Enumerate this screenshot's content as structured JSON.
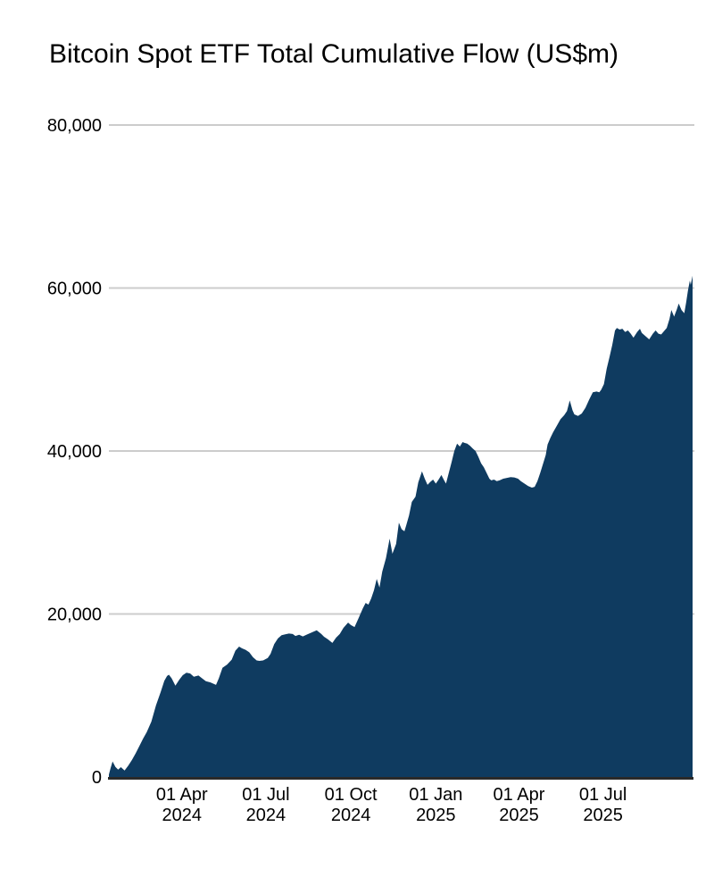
{
  "header": {
    "title": "Bitcoin Spot ETF Total Cumulative Flow (US$m)"
  },
  "chart_data": {
    "type": "area",
    "title": "Bitcoin Spot ETF Total Cumulative Flow (US$m)",
    "xlabel": "",
    "ylabel": "",
    "legend": "none",
    "grid": true,
    "ylim": [
      0,
      80000
    ],
    "x_domain": [
      "2024-01-13",
      "2025-10-06"
    ],
    "y_ticks": [
      {
        "value": 0,
        "label": "0"
      },
      {
        "value": 20000,
        "label": "20,000"
      },
      {
        "value": 40000,
        "label": "40,000"
      },
      {
        "value": 60000,
        "label": "60,000"
      },
      {
        "value": 80000,
        "label": "80,000"
      }
    ],
    "x_ticks": [
      {
        "date": "2024-04-01",
        "line1": "01 Apr",
        "line2": "2024"
      },
      {
        "date": "2024-07-01",
        "line1": "01 Jul",
        "line2": "2024"
      },
      {
        "date": "2024-10-01",
        "line1": "01 Oct",
        "line2": "2024"
      },
      {
        "date": "2025-01-01",
        "line1": "01 Jan",
        "line2": "2025"
      },
      {
        "date": "2025-04-01",
        "line1": "01 Apr",
        "line2": "2025"
      },
      {
        "date": "2025-07-01",
        "line1": "01 Jul",
        "line2": "2025"
      }
    ],
    "colors": {
      "area_fill": "#0f3b60",
      "gridline": "#cccccc",
      "zero_line": "#2a2a2a",
      "text": "#000000",
      "background": "#ffffff"
    },
    "series": [
      {
        "name": "Total Cumulative Flow (US$m)",
        "points": [
          [
            "2024-01-13",
            300
          ],
          [
            "2024-01-15",
            1150
          ],
          [
            "2024-01-17",
            1900
          ],
          [
            "2024-01-20",
            1250
          ],
          [
            "2024-01-23",
            900
          ],
          [
            "2024-01-26",
            1200
          ],
          [
            "2024-01-30",
            800
          ],
          [
            "2024-02-03",
            1400
          ],
          [
            "2024-02-07",
            2100
          ],
          [
            "2024-02-11",
            2900
          ],
          [
            "2024-02-15",
            3800
          ],
          [
            "2024-02-19",
            4700
          ],
          [
            "2024-02-23",
            5500
          ],
          [
            "2024-02-28",
            6800
          ],
          [
            "2024-03-04",
            8800
          ],
          [
            "2024-03-09",
            10400
          ],
          [
            "2024-03-13",
            11800
          ],
          [
            "2024-03-16",
            12400
          ],
          [
            "2024-03-18",
            12550
          ],
          [
            "2024-03-21",
            12100
          ],
          [
            "2024-03-25",
            11200
          ],
          [
            "2024-03-29",
            11900
          ],
          [
            "2024-04-02",
            12500
          ],
          [
            "2024-04-06",
            12800
          ],
          [
            "2024-04-10",
            12700
          ],
          [
            "2024-04-14",
            12300
          ],
          [
            "2024-04-19",
            12450
          ],
          [
            "2024-04-23",
            12100
          ],
          [
            "2024-04-27",
            11750
          ],
          [
            "2024-05-02",
            11600
          ],
          [
            "2024-05-08",
            11300
          ],
          [
            "2024-05-11",
            12100
          ],
          [
            "2024-05-15",
            13400
          ],
          [
            "2024-05-20",
            13800
          ],
          [
            "2024-05-25",
            14400
          ],
          [
            "2024-05-29",
            15500
          ],
          [
            "2024-06-02",
            16000
          ],
          [
            "2024-06-05",
            15800
          ],
          [
            "2024-06-09",
            15600
          ],
          [
            "2024-06-13",
            15300
          ],
          [
            "2024-06-17",
            14700
          ],
          [
            "2024-06-21",
            14300
          ],
          [
            "2024-06-24",
            14250
          ],
          [
            "2024-06-28",
            14300
          ],
          [
            "2024-07-03",
            14600
          ],
          [
            "2024-07-06",
            15100
          ],
          [
            "2024-07-10",
            16300
          ],
          [
            "2024-07-14",
            17000
          ],
          [
            "2024-07-18",
            17400
          ],
          [
            "2024-07-22",
            17500
          ],
          [
            "2024-07-26",
            17600
          ],
          [
            "2024-07-30",
            17550
          ],
          [
            "2024-08-02",
            17300
          ],
          [
            "2024-08-06",
            17450
          ],
          [
            "2024-08-10",
            17250
          ],
          [
            "2024-08-15",
            17500
          ],
          [
            "2024-08-20",
            17750
          ],
          [
            "2024-08-25",
            18000
          ],
          [
            "2024-08-30",
            17550
          ],
          [
            "2024-09-02",
            17200
          ],
          [
            "2024-09-06",
            16900
          ],
          [
            "2024-09-11",
            16450
          ],
          [
            "2024-09-15",
            17100
          ],
          [
            "2024-09-19",
            17550
          ],
          [
            "2024-09-23",
            18300
          ],
          [
            "2024-09-28",
            18950
          ],
          [
            "2024-10-01",
            18650
          ],
          [
            "2024-10-05",
            18400
          ],
          [
            "2024-10-09",
            19400
          ],
          [
            "2024-10-14",
            20700
          ],
          [
            "2024-10-17",
            21350
          ],
          [
            "2024-10-20",
            21150
          ],
          [
            "2024-10-23",
            21900
          ],
          [
            "2024-10-26",
            22900
          ],
          [
            "2024-10-29",
            24300
          ],
          [
            "2024-11-01",
            23250
          ],
          [
            "2024-11-04",
            25200
          ],
          [
            "2024-11-08",
            26850
          ],
          [
            "2024-11-12",
            29250
          ],
          [
            "2024-11-15",
            27400
          ],
          [
            "2024-11-19",
            28600
          ],
          [
            "2024-11-22",
            31200
          ],
          [
            "2024-11-25",
            30400
          ],
          [
            "2024-11-28",
            30150
          ],
          [
            "2024-11-30",
            30900
          ],
          [
            "2024-12-03",
            32100
          ],
          [
            "2024-12-06",
            33750
          ],
          [
            "2024-12-10",
            34400
          ],
          [
            "2024-12-13",
            36150
          ],
          [
            "2024-12-17",
            37500
          ],
          [
            "2024-12-20",
            36600
          ],
          [
            "2024-12-23",
            35850
          ],
          [
            "2024-12-26",
            36200
          ],
          [
            "2024-12-29",
            36500
          ],
          [
            "2025-01-01",
            36000
          ],
          [
            "2025-01-04",
            36500
          ],
          [
            "2025-01-07",
            37050
          ],
          [
            "2025-01-10",
            36400
          ],
          [
            "2025-01-12",
            36000
          ],
          [
            "2025-01-15",
            37300
          ],
          [
            "2025-01-18",
            38600
          ],
          [
            "2025-01-21",
            40000
          ],
          [
            "2025-01-24",
            40900
          ],
          [
            "2025-01-27",
            40550
          ],
          [
            "2025-01-30",
            41100
          ],
          [
            "2025-02-01",
            41000
          ],
          [
            "2025-02-04",
            40900
          ],
          [
            "2025-02-07",
            40650
          ],
          [
            "2025-02-10",
            40300
          ],
          [
            "2025-02-13",
            40000
          ],
          [
            "2025-02-16",
            39300
          ],
          [
            "2025-02-19",
            38500
          ],
          [
            "2025-02-22",
            38000
          ],
          [
            "2025-02-25",
            37300
          ],
          [
            "2025-02-28",
            36600
          ],
          [
            "2025-03-02",
            36400
          ],
          [
            "2025-03-05",
            36500
          ],
          [
            "2025-03-08",
            36300
          ],
          [
            "2025-03-11",
            36400
          ],
          [
            "2025-03-15",
            36600
          ],
          [
            "2025-03-19",
            36700
          ],
          [
            "2025-03-23",
            36800
          ],
          [
            "2025-03-27",
            36750
          ],
          [
            "2025-03-31",
            36600
          ],
          [
            "2025-04-03",
            36300
          ],
          [
            "2025-04-07",
            36000
          ],
          [
            "2025-04-11",
            35700
          ],
          [
            "2025-04-15",
            35500
          ],
          [
            "2025-04-18",
            35600
          ],
          [
            "2025-04-21",
            36300
          ],
          [
            "2025-04-24",
            37300
          ],
          [
            "2025-04-27",
            38400
          ],
          [
            "2025-04-30",
            39500
          ],
          [
            "2025-05-02",
            40800
          ],
          [
            "2025-05-05",
            41600
          ],
          [
            "2025-05-08",
            42300
          ],
          [
            "2025-05-12",
            43100
          ],
          [
            "2025-05-16",
            43900
          ],
          [
            "2025-05-20",
            44400
          ],
          [
            "2025-05-23",
            44900
          ],
          [
            "2025-05-26",
            46200
          ],
          [
            "2025-05-29",
            45000
          ],
          [
            "2025-05-31",
            44500
          ],
          [
            "2025-06-04",
            44300
          ],
          [
            "2025-06-08",
            44600
          ],
          [
            "2025-06-12",
            45300
          ],
          [
            "2025-06-16",
            46300
          ],
          [
            "2025-06-20",
            47200
          ],
          [
            "2025-06-24",
            47300
          ],
          [
            "2025-06-27",
            47200
          ],
          [
            "2025-06-29",
            47500
          ],
          [
            "2025-07-02",
            48200
          ],
          [
            "2025-07-05",
            50100
          ],
          [
            "2025-07-08",
            51500
          ],
          [
            "2025-07-11",
            53000
          ],
          [
            "2025-07-14",
            54800
          ],
          [
            "2025-07-16",
            55100
          ],
          [
            "2025-07-19",
            54900
          ],
          [
            "2025-07-22",
            55000
          ],
          [
            "2025-07-25",
            54600
          ],
          [
            "2025-07-28",
            54800
          ],
          [
            "2025-07-31",
            54400
          ],
          [
            "2025-08-03",
            53900
          ],
          [
            "2025-08-07",
            54600
          ],
          [
            "2025-08-10",
            55000
          ],
          [
            "2025-08-12",
            54500
          ],
          [
            "2025-08-16",
            54100
          ],
          [
            "2025-08-20",
            53700
          ],
          [
            "2025-08-24",
            54400
          ],
          [
            "2025-08-27",
            54800
          ],
          [
            "2025-08-30",
            54400
          ],
          [
            "2025-09-02",
            54300
          ],
          [
            "2025-09-05",
            54700
          ],
          [
            "2025-09-08",
            55100
          ],
          [
            "2025-09-11",
            56200
          ],
          [
            "2025-09-13",
            57300
          ],
          [
            "2025-09-16",
            56500
          ],
          [
            "2025-09-19",
            57400
          ],
          [
            "2025-09-21",
            58100
          ],
          [
            "2025-09-24",
            57300
          ],
          [
            "2025-09-27",
            56900
          ],
          [
            "2025-09-29",
            58200
          ],
          [
            "2025-10-01",
            59700
          ],
          [
            "2025-10-03",
            60900
          ],
          [
            "2025-10-04",
            60400
          ],
          [
            "2025-10-06",
            61500
          ]
        ]
      }
    ]
  }
}
